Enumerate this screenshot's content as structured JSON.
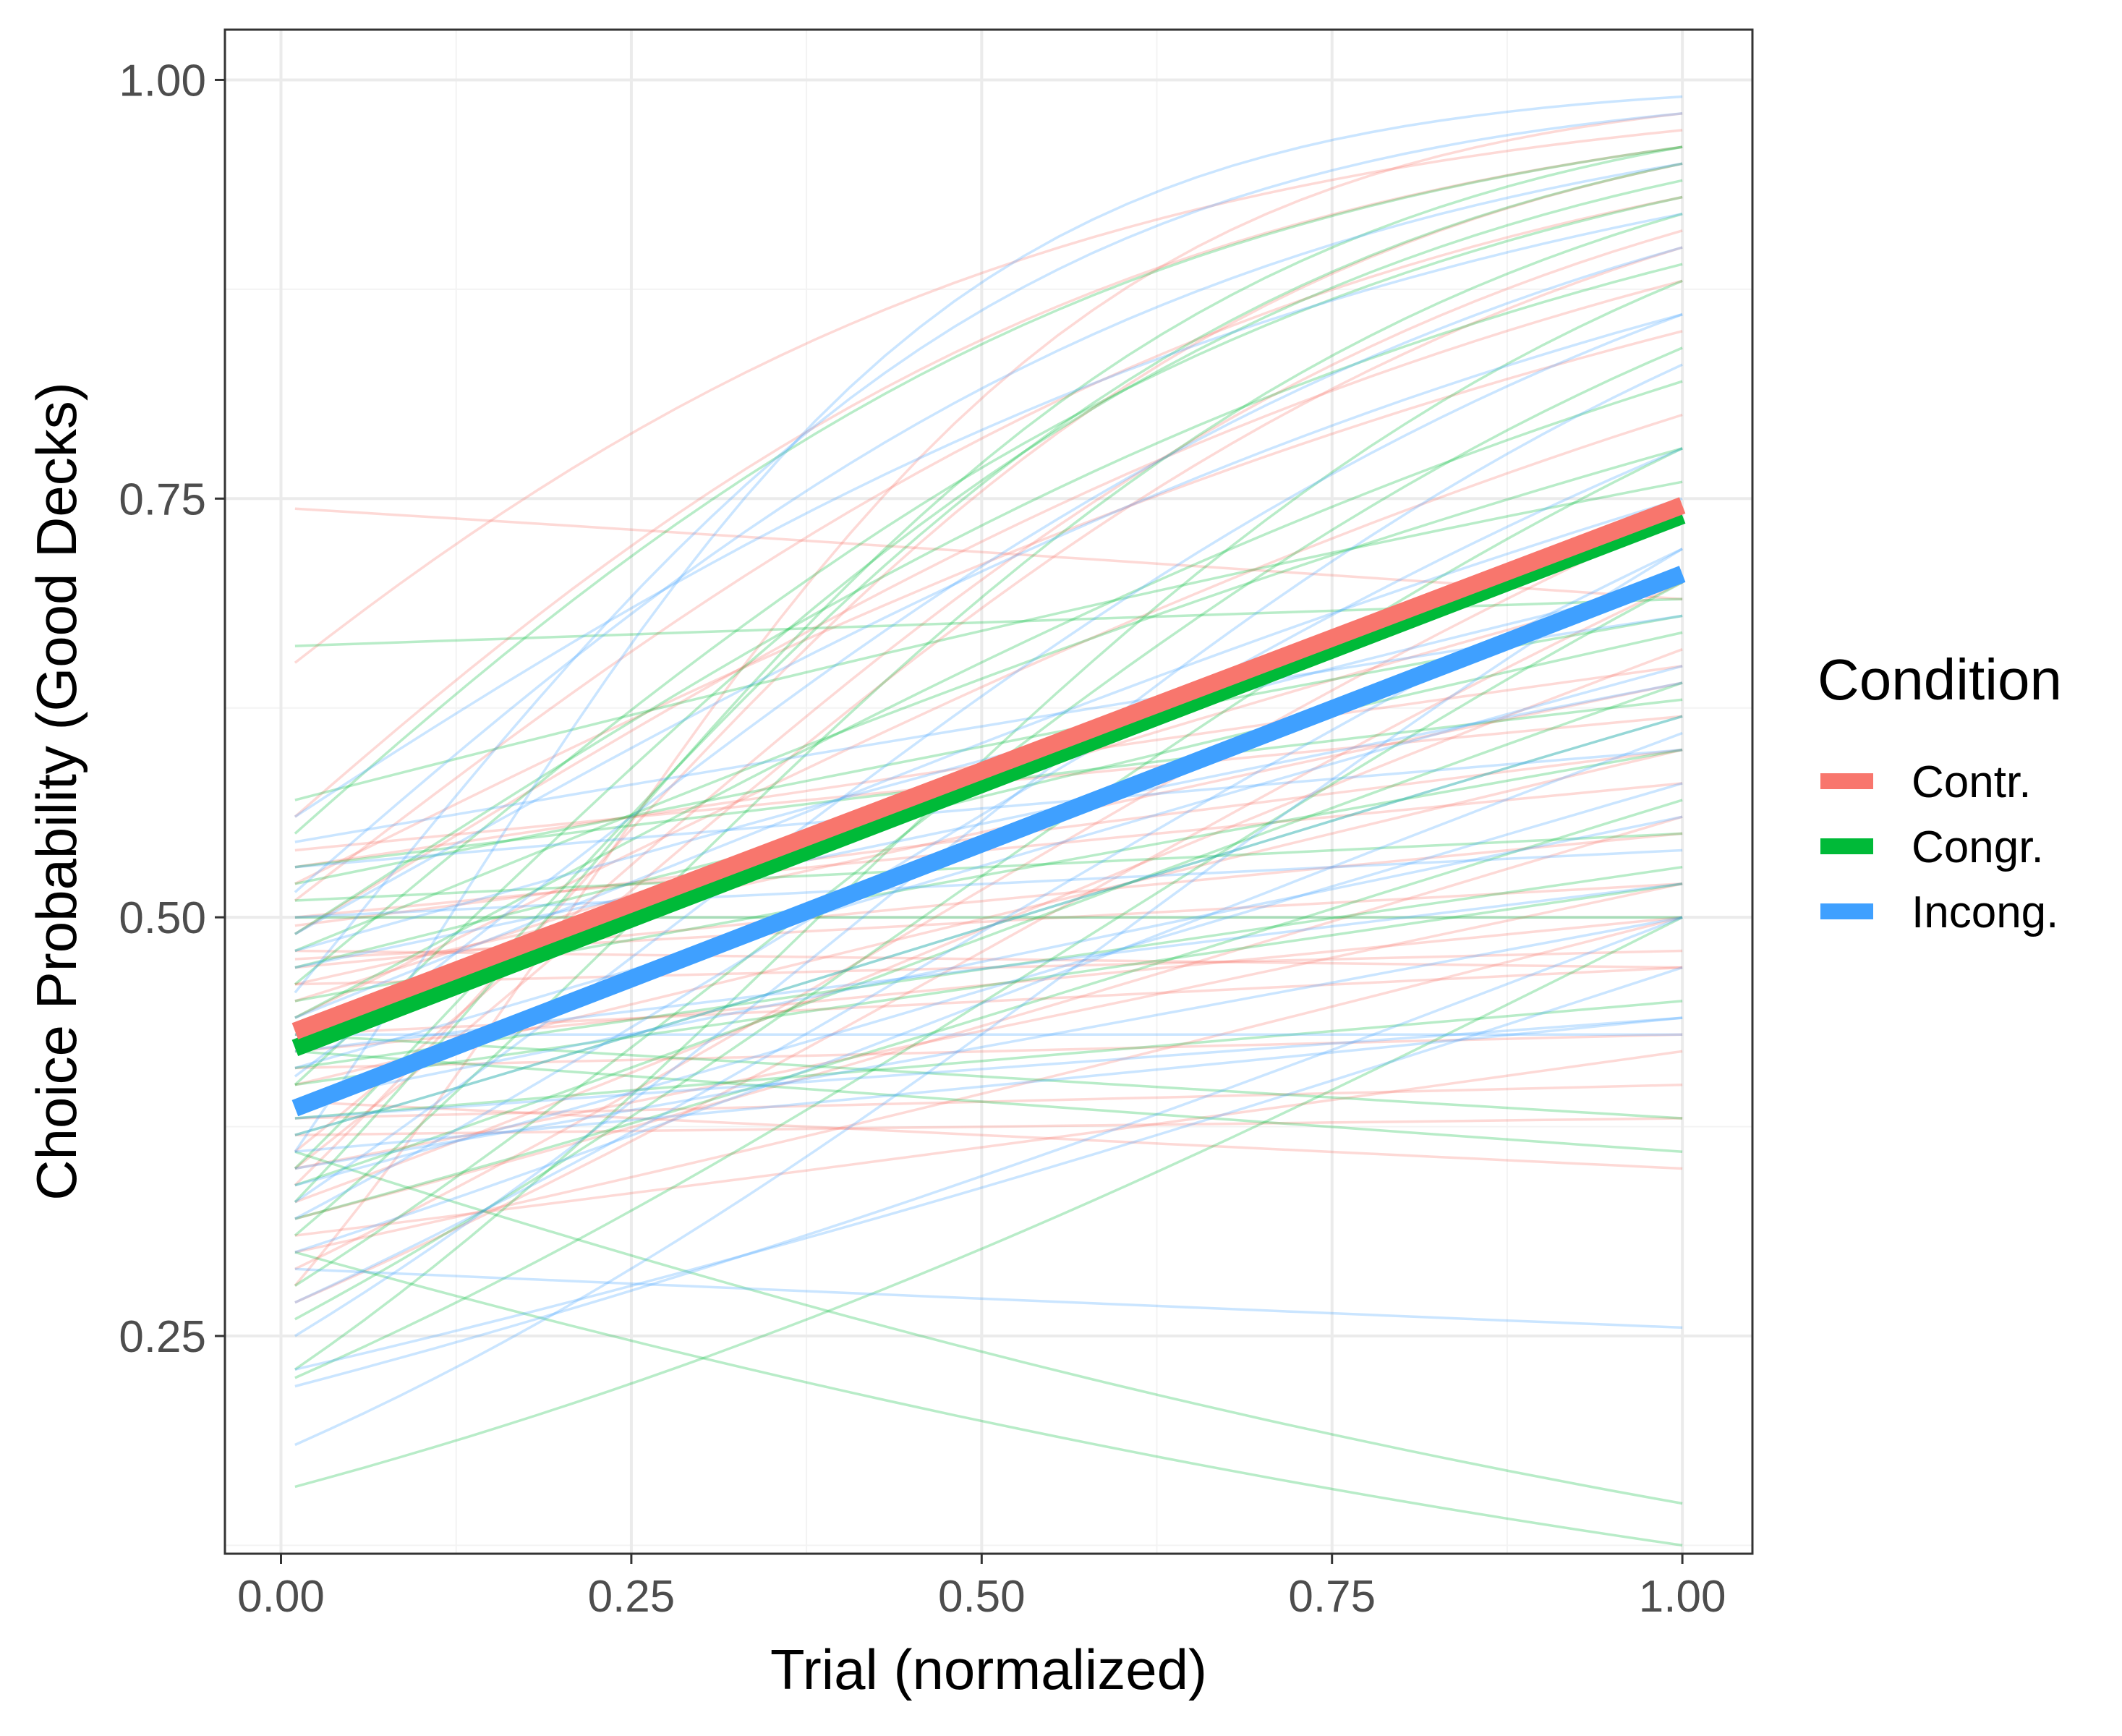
{
  "chart_data": {
    "type": "line",
    "title": "",
    "xlabel": "Trial (normalized)",
    "ylabel": "Choice Probability (Good Decks)",
    "xlim": [
      -0.04,
      1.05
    ],
    "ylim": [
      0.12,
      1.03
    ],
    "grid": true,
    "x_ticks": [
      {
        "value": 0.0,
        "label": "0.00"
      },
      {
        "value": 0.25,
        "label": "0.25"
      },
      {
        "value": 0.5,
        "label": "0.50"
      },
      {
        "value": 0.75,
        "label": "0.75"
      },
      {
        "value": 1.0,
        "label": "1.00"
      }
    ],
    "y_ticks": [
      {
        "value": 0.25,
        "label": "0.25"
      },
      {
        "value": 0.5,
        "label": "0.50"
      },
      {
        "value": 0.75,
        "label": "0.75"
      },
      {
        "value": 1.0,
        "label": "1.00"
      }
    ],
    "legend": {
      "title": "Condition",
      "position": "right",
      "entries": [
        {
          "label": "Contr.",
          "color": "#f8766d"
        },
        {
          "label": "Congr.",
          "color": "#00ba38"
        },
        {
          "label": "Incong.",
          "color": "#3fa0ff"
        }
      ]
    },
    "series": [
      {
        "name": "Contr.",
        "color": "#f8766d",
        "x": [
          0.01,
          1.0
        ],
        "values": [
          0.432,
          0.746
        ]
      },
      {
        "name": "Congr.",
        "color": "#00ba38",
        "x": [
          0.01,
          1.0
        ],
        "values": [
          0.422,
          0.74
        ]
      },
      {
        "name": "Incong.",
        "color": "#3fa0ff",
        "x": [
          0.01,
          1.0
        ],
        "values": [
          0.386,
          0.705
        ]
      }
    ],
    "individual_curves_note": "Thin translucent per-participant logistic curves (x from 0.01 to 1.00), start and end probabilities per condition.",
    "individual_curves": {
      "Contr.": [
        [
          0.744,
          0.69
        ],
        [
          0.652,
          0.97
        ],
        [
          0.56,
          0.96
        ],
        [
          0.54,
          0.62
        ],
        [
          0.53,
          0.65
        ],
        [
          0.52,
          0.85
        ],
        [
          0.51,
          0.93
        ],
        [
          0.5,
          0.58
        ],
        [
          0.495,
          0.6
        ],
        [
          0.49,
          0.88
        ],
        [
          0.48,
          0.47
        ],
        [
          0.475,
          0.52
        ],
        [
          0.47,
          0.55
        ],
        [
          0.46,
          0.64
        ],
        [
          0.45,
          0.7
        ],
        [
          0.44,
          0.8
        ],
        [
          0.43,
          0.47
        ],
        [
          0.42,
          0.5
        ],
        [
          0.41,
          0.43
        ],
        [
          0.4,
          0.6
        ],
        [
          0.39,
          0.35
        ],
        [
          0.38,
          0.4
        ],
        [
          0.37,
          0.38
        ],
        [
          0.36,
          0.91
        ],
        [
          0.35,
          0.52
        ],
        [
          0.34,
          0.95
        ],
        [
          0.33,
          0.66
        ],
        [
          0.32,
          0.56
        ],
        [
          0.31,
          0.42
        ],
        [
          0.3,
          0.5
        ],
        [
          0.29,
          0.74
        ],
        [
          0.28,
          0.98
        ],
        [
          0.27,
          0.7
        ],
        [
          0.35,
          0.9
        ],
        [
          0.46,
          0.48
        ]
      ],
      "Congr.": [
        [
          0.662,
          0.69
        ],
        [
          0.57,
          0.76
        ],
        [
          0.55,
          0.96
        ],
        [
          0.53,
          0.63
        ],
        [
          0.51,
          0.55
        ],
        [
          0.5,
          0.5
        ],
        [
          0.49,
          0.89
        ],
        [
          0.48,
          0.78
        ],
        [
          0.47,
          0.67
        ],
        [
          0.46,
          0.93
        ],
        [
          0.45,
          0.6
        ],
        [
          0.44,
          0.82
        ],
        [
          0.43,
          0.38
        ],
        [
          0.42,
          0.36
        ],
        [
          0.41,
          0.53
        ],
        [
          0.4,
          0.94
        ],
        [
          0.39,
          0.7
        ],
        [
          0.38,
          0.45
        ],
        [
          0.37,
          0.62
        ],
        [
          0.36,
          0.15
        ],
        [
          0.35,
          0.95
        ],
        [
          0.34,
          0.64
        ],
        [
          0.33,
          0.96
        ],
        [
          0.32,
          0.57
        ],
        [
          0.31,
          0.92
        ],
        [
          0.3,
          0.125
        ],
        [
          0.28,
          0.84
        ],
        [
          0.26,
          0.78
        ],
        [
          0.23,
          0.88
        ],
        [
          0.225,
          0.7
        ],
        [
          0.16,
          0.5
        ],
        [
          0.4,
          0.52
        ],
        [
          0.52,
          0.68
        ]
      ],
      "Incong.": [
        [
          0.56,
          0.92
        ],
        [
          0.545,
          0.68
        ],
        [
          0.53,
          0.6
        ],
        [
          0.515,
          0.95
        ],
        [
          0.5,
          0.54
        ],
        [
          0.49,
          0.86
        ],
        [
          0.48,
          0.7
        ],
        [
          0.47,
          0.64
        ],
        [
          0.455,
          0.98
        ],
        [
          0.44,
          0.75
        ],
        [
          0.43,
          0.43
        ],
        [
          0.42,
          0.52
        ],
        [
          0.405,
          0.9
        ],
        [
          0.39,
          0.56
        ],
        [
          0.38,
          0.44
        ],
        [
          0.37,
          0.62
        ],
        [
          0.36,
          0.99
        ],
        [
          0.35,
          0.5
        ],
        [
          0.34,
          0.58
        ],
        [
          0.33,
          0.86
        ],
        [
          0.32,
          0.78
        ],
        [
          0.3,
          0.61
        ],
        [
          0.29,
          0.255
        ],
        [
          0.27,
          0.72
        ],
        [
          0.25,
          0.83
        ],
        [
          0.23,
          0.47
        ],
        [
          0.22,
          0.5
        ],
        [
          0.185,
          0.72
        ],
        [
          0.36,
          0.44
        ],
        [
          0.41,
          0.65
        ]
      ]
    }
  }
}
